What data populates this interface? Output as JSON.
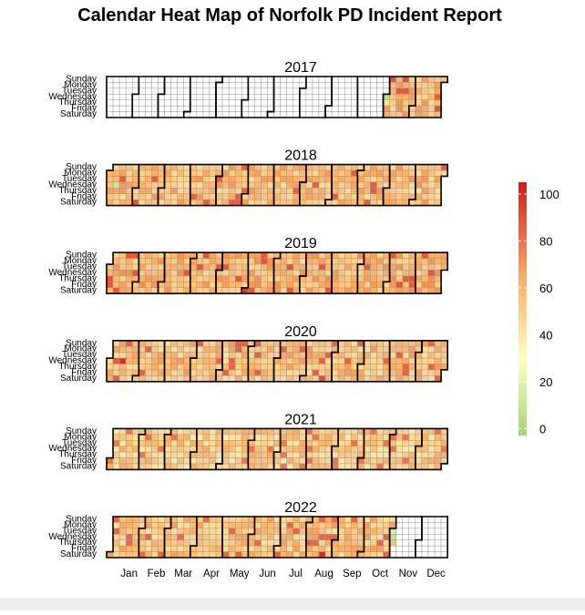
{
  "chart_data": {
    "type": "heatmap",
    "title": "Calendar Heat Map of Norfolk PD Incident Report",
    "years": [
      "2017",
      "2018",
      "2019",
      "2020",
      "2021",
      "2022"
    ],
    "weekdays": [
      "Sunday",
      "Monday",
      "Tuesday",
      "Wednesday",
      "Thursday",
      "Friday",
      "Saturday"
    ],
    "months": [
      "Jan",
      "Feb",
      "Mar",
      "Apr",
      "May",
      "Jun",
      "Jul",
      "Aug",
      "Sep",
      "Oct",
      "Nov",
      "Dec"
    ],
    "data_range": {
      "2017": [
        "2017-11-01",
        "2017-12-31"
      ],
      "2018": [
        "2018-01-01",
        "2018-12-31"
      ],
      "2019": [
        "2019-01-01",
        "2019-12-31"
      ],
      "2020": [
        "2020-01-01",
        "2020-12-31"
      ],
      "2021": [
        "2021-01-01",
        "2021-12-31"
      ],
      "2022": [
        "2022-01-01",
        "2022-11-03"
      ]
    },
    "typical_daily_count": {
      "2017": 60,
      "2018": 58,
      "2019": 60,
      "2020": 57,
      "2021": 52,
      "2022": 56
    },
    "outliers": [
      {
        "date": "2017-11-01",
        "value": 5
      },
      {
        "date": "2017-11-02",
        "value": 40
      },
      {
        "date": "2018-01-10",
        "value": 12
      },
      {
        "date": "2019-06-01",
        "value": 95
      },
      {
        "date": "2020-01-15",
        "value": 100
      },
      {
        "date": "2020-01-08",
        "value": 88
      },
      {
        "date": "2020-08-22",
        "value": 92
      },
      {
        "date": "2022-08-20",
        "value": 100
      },
      {
        "date": "2022-11-01",
        "value": 15
      },
      {
        "date": "2022-11-02",
        "value": 8
      }
    ],
    "legend": {
      "ticks": [
        0,
        20,
        40,
        60,
        80,
        100
      ],
      "range": [
        -3,
        105
      ],
      "colors": [
        "#9ed96b",
        "#ffffbf",
        "#fdae61",
        "#d7191c"
      ],
      "placement": "right"
    }
  }
}
